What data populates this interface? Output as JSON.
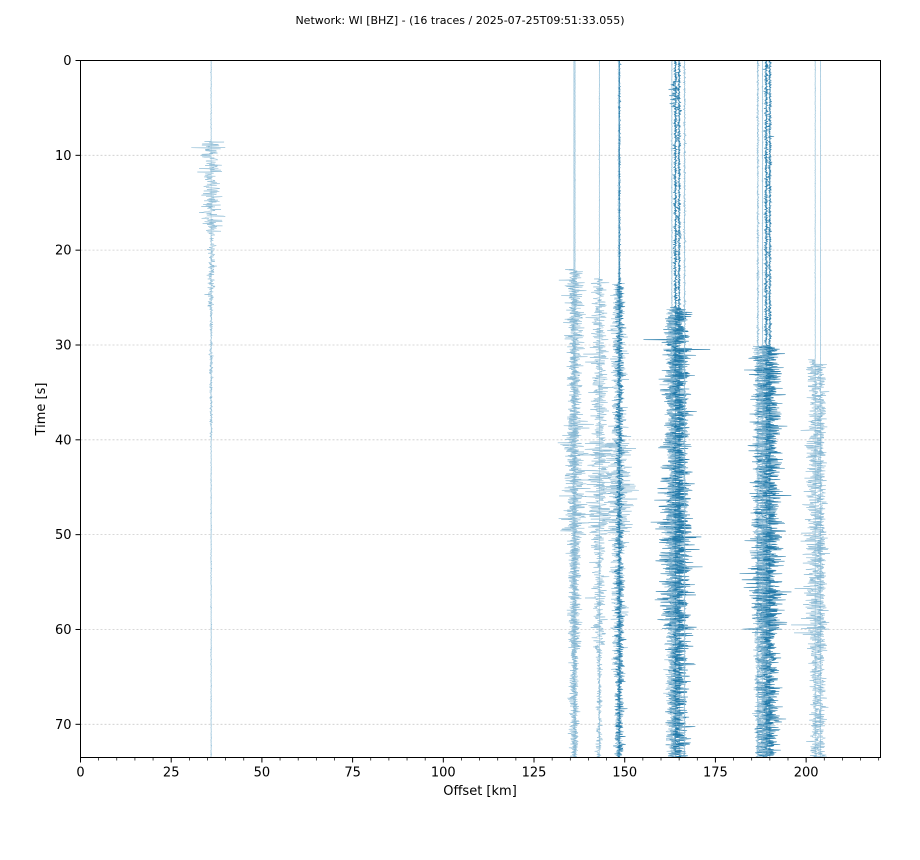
{
  "chart_data": {
    "type": "line",
    "title": "Network: WI [BHZ] - (16 traces / 2025-07-25T09:51:33.055)",
    "xlabel": "Offset [km]",
    "ylabel": "Time [s]",
    "xlim": [
      0,
      220.5
    ],
    "ylim": [
      73.5,
      0
    ],
    "y_inverted": true,
    "grid": "horizontal-dashed",
    "x_ticks": [
      0,
      25,
      50,
      75,
      100,
      125,
      150,
      175,
      200
    ],
    "y_ticks": [
      0,
      10,
      20,
      30,
      40,
      50,
      60,
      70
    ],
    "trace_color_light": "#7fb3d0",
    "trace_color_dark": "#1f77a8",
    "traces": [
      {
        "offset": 36.0,
        "amp": 6.5,
        "style": "light",
        "windows": [
          [
            0,
            10.0,
            0.3
          ],
          [
            8.5,
            9.5,
            6.5
          ],
          [
            9.5,
            18.0,
            5.0
          ],
          [
            18.0,
            26.0,
            2.0
          ],
          [
            26.0,
            40.0,
            0.8
          ],
          [
            40.0,
            73.5,
            0.3
          ]
        ]
      },
      {
        "offset": 136.3,
        "amp": 6.5,
        "style": "light",
        "windows": [
          [
            0,
            22.0,
            0.2
          ],
          [
            22.0,
            30.0,
            5.0
          ],
          [
            30.0,
            38.0,
            3.5
          ],
          [
            38.0,
            50.0,
            6.5
          ],
          [
            50.0,
            62.0,
            3.0
          ],
          [
            62.0,
            73.5,
            1.5
          ]
        ]
      },
      {
        "offset": 143.0,
        "amp": 6.0,
        "style": "light",
        "windows": [
          [
            0,
            23.0,
            0.2
          ],
          [
            23.0,
            40.0,
            4.0
          ],
          [
            40.0,
            50.0,
            6.0
          ],
          [
            50.0,
            62.0,
            3.5
          ],
          [
            62.0,
            73.5,
            1.5
          ]
        ]
      },
      {
        "offset": 148.3,
        "amp": 7.0,
        "style": "light",
        "windows": [
          [
            0,
            23.5,
            0.4
          ],
          [
            23.5,
            28.0,
            3.5
          ],
          [
            28.0,
            40.0,
            4.0
          ],
          [
            40.0,
            50.0,
            7.0
          ],
          [
            50.0,
            65.0,
            3.5
          ],
          [
            65.0,
            73.5,
            2.0
          ]
        ]
      },
      {
        "offset": 148.6,
        "amp": 3.0,
        "style": "dark",
        "windows": [
          [
            0,
            23.5,
            0.4
          ],
          [
            23.5,
            73.5,
            2.2
          ]
        ]
      },
      {
        "offset": 164.0,
        "amp": 9.0,
        "style": "dark",
        "windows": [
          [
            0,
            2.0,
            1.0
          ],
          [
            2.0,
            5.0,
            2.5
          ],
          [
            5.0,
            26.0,
            1.0
          ],
          [
            26.0,
            44.0,
            6.5
          ],
          [
            44.0,
            60.0,
            9.0
          ],
          [
            60.0,
            73.5,
            3.0
          ]
        ]
      },
      {
        "offset": 165.0,
        "amp": 6.0,
        "style": "dark",
        "windows": [
          [
            0,
            26.0,
            0.8
          ],
          [
            26.0,
            73.5,
            5.5
          ]
        ]
      },
      {
        "offset": 166.5,
        "amp": 1.5,
        "style": "light",
        "windows": [
          [
            0,
            73.5,
            0.6
          ]
        ]
      },
      {
        "offset": 163.0,
        "amp": 3.0,
        "style": "light",
        "windows": [
          [
            0,
            26.0,
            0.3
          ],
          [
            26.0,
            73.5,
            3.0
          ]
        ]
      },
      {
        "offset": 186.7,
        "amp": 1.5,
        "style": "light",
        "windows": [
          [
            0,
            30.0,
            0.6
          ],
          [
            30.0,
            73.5,
            1.5
          ]
        ]
      },
      {
        "offset": 189.0,
        "amp": 9.5,
        "style": "dark",
        "windows": [
          [
            0,
            30.0,
            1.0
          ],
          [
            30.0,
            50.0,
            7.0
          ],
          [
            50.0,
            60.0,
            9.5
          ],
          [
            60.0,
            73.5,
            4.5
          ]
        ]
      },
      {
        "offset": 190.0,
        "amp": 6.0,
        "style": "dark",
        "windows": [
          [
            0,
            30.0,
            0.8
          ],
          [
            30.0,
            73.5,
            5.0
          ]
        ]
      },
      {
        "offset": 188.0,
        "amp": 4.0,
        "style": "light",
        "windows": [
          [
            0,
            30.0,
            0.3
          ],
          [
            30.0,
            73.5,
            4.0
          ]
        ]
      },
      {
        "offset": 202.5,
        "amp": 6.0,
        "style": "light",
        "windows": [
          [
            0,
            31.5,
            0.2
          ],
          [
            31.5,
            40.0,
            4.0
          ],
          [
            40.0,
            50.0,
            5.0
          ],
          [
            50.0,
            62.0,
            6.0
          ],
          [
            62.0,
            73.5,
            2.5
          ]
        ]
      },
      {
        "offset": 204.0,
        "amp": 3.0,
        "style": "light",
        "windows": [
          [
            0,
            32.0,
            0.1
          ],
          [
            32.0,
            73.5,
            2.5
          ]
        ]
      },
      {
        "offset": 136.0,
        "amp": 3.0,
        "style": "light",
        "windows": [
          [
            0,
            22.0,
            0.1
          ],
          [
            22.0,
            73.5,
            2.5
          ]
        ]
      }
    ]
  }
}
